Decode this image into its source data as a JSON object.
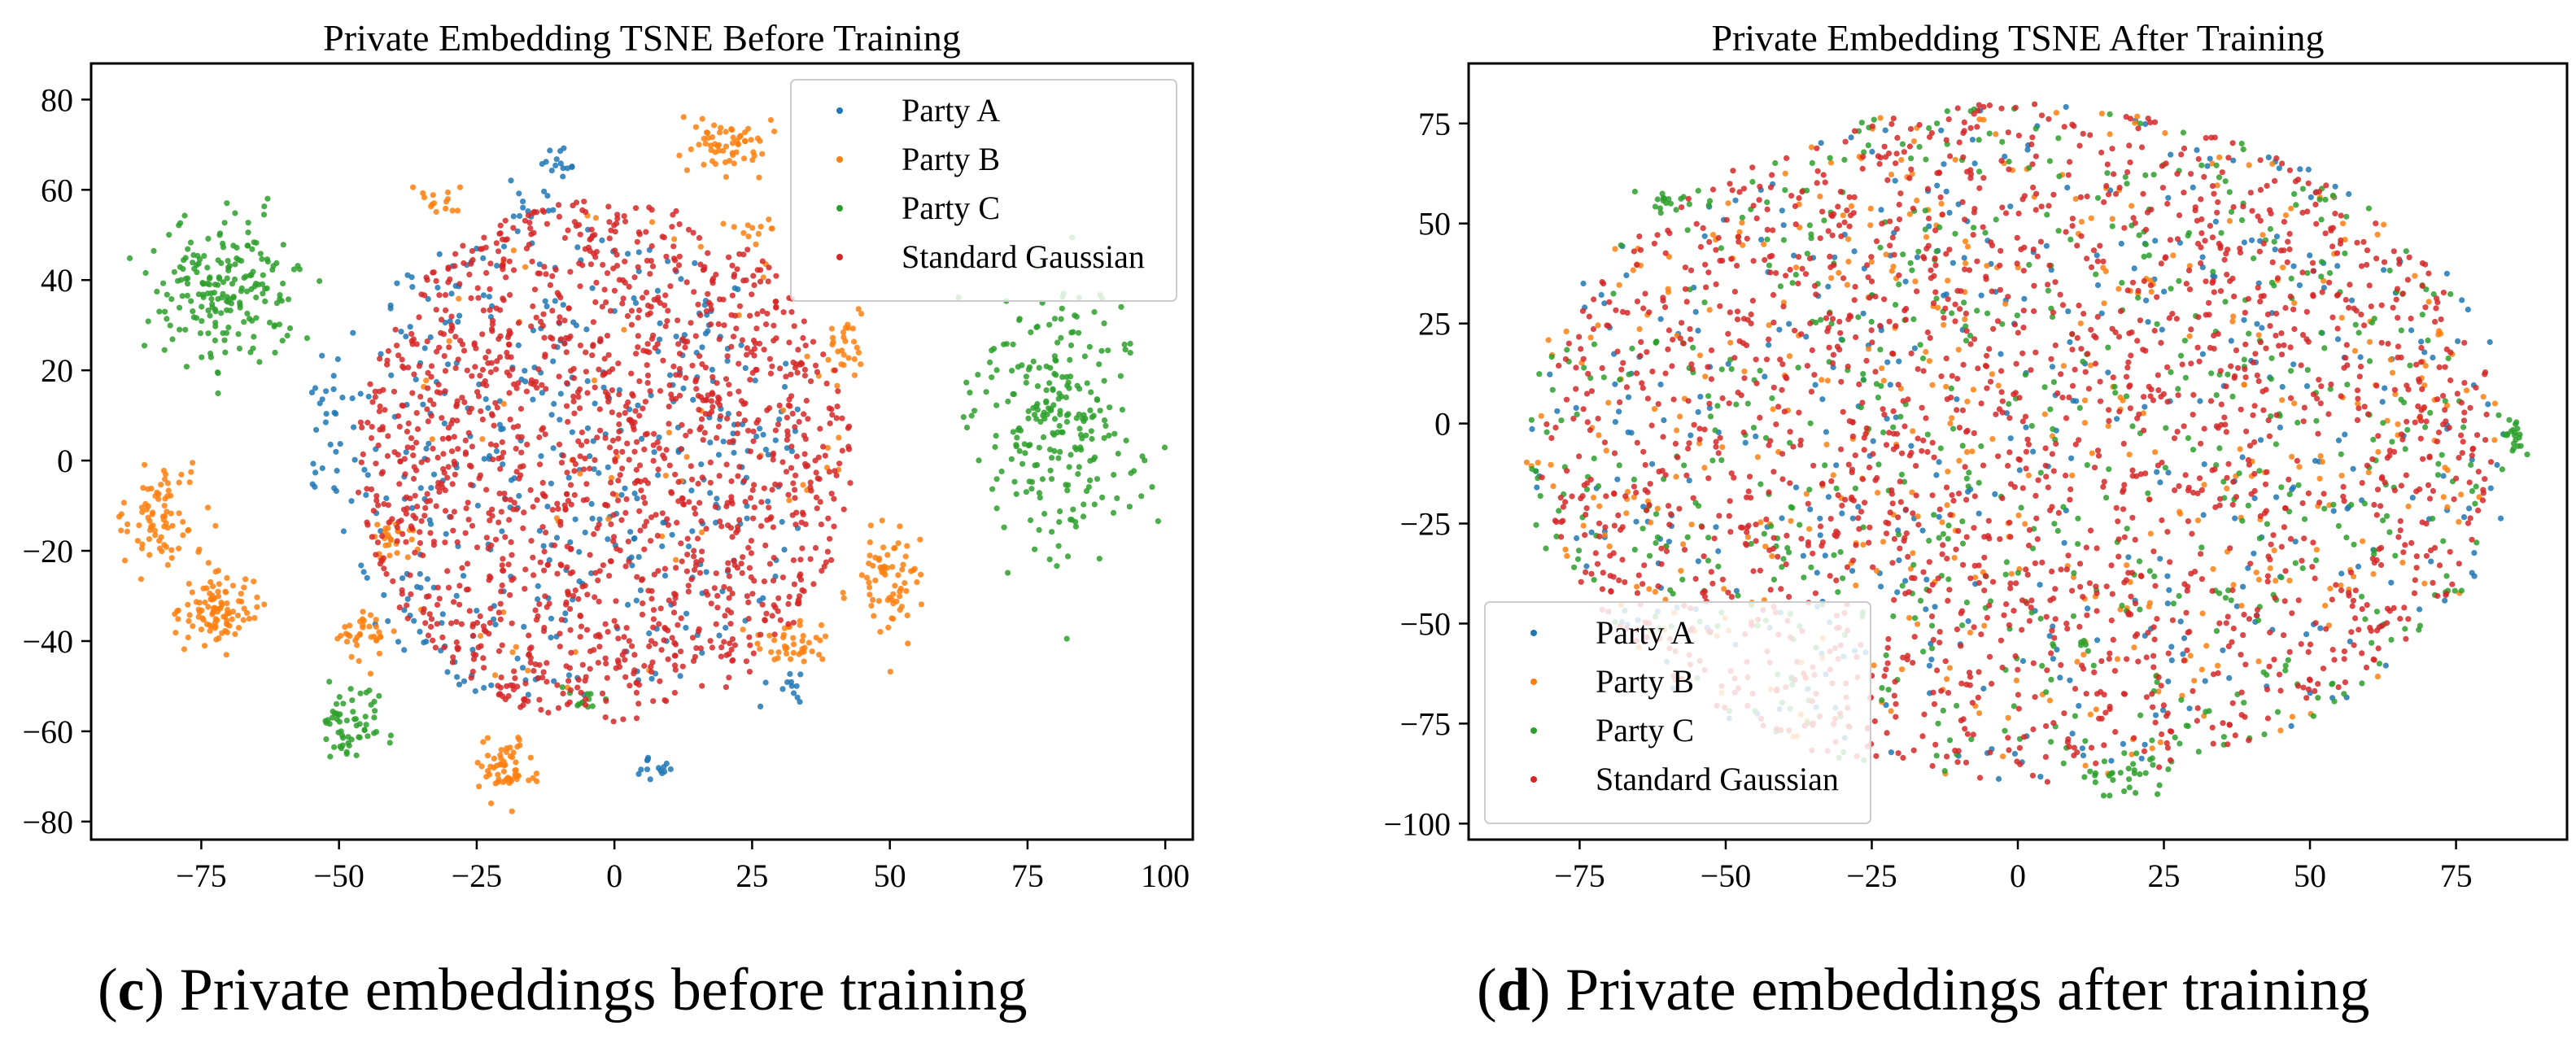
{
  "chart_data": [
    {
      "type": "scatter",
      "title": "Private Embedding TSNE Before Training",
      "xlabel": "",
      "ylabel": "",
      "xlim": [
        -95,
        105
      ],
      "ylim": [
        -84,
        88
      ],
      "xticks": [
        -75,
        -50,
        -25,
        0,
        25,
        50,
        75,
        100
      ],
      "xtick_labels": [
        "−75",
        "−50",
        "−25",
        "0",
        "25",
        "50",
        "75",
        "100"
      ],
      "yticks": [
        -80,
        -60,
        -40,
        -20,
        0,
        20,
        40,
        60,
        80
      ],
      "ytick_labels": [
        "−80",
        "−60",
        "−40",
        "−20",
        "0",
        "20",
        "40",
        "60",
        "80"
      ],
      "legend_position": "top-right",
      "legend": [
        "Party A",
        "Party B",
        "Party C",
        "Standard Gaussian"
      ],
      "series": [
        {
          "name": "Party A",
          "color": "#1f77b4",
          "clusters": [
            {
              "cx": -10,
              "cy": 0,
              "rx": 45,
              "ry": 55,
              "n": 420,
              "shape": "disk"
            },
            {
              "cx": -10,
              "cy": 65,
              "rx": 4,
              "ry": 3,
              "n": 14
            },
            {
              "cx": 8,
              "cy": -68,
              "rx": 6,
              "ry": 3,
              "n": 14
            },
            {
              "cx": 30,
              "cy": -50,
              "rx": 5,
              "ry": 4,
              "n": 12
            },
            {
              "cx": -15,
              "cy": 55,
              "rx": 5,
              "ry": 6,
              "n": 10
            },
            {
              "cx": -52,
              "cy": 5,
              "rx": 3,
              "ry": 15,
              "n": 16
            }
          ]
        },
        {
          "name": "Party B",
          "color": "#ff7f0e",
          "clusters": [
            {
              "cx": -82,
              "cy": -12,
              "rx": 8,
              "ry": 10,
              "n": 80
            },
            {
              "cx": -72,
              "cy": -33,
              "rx": 6,
              "ry": 7,
              "n": 100
            },
            {
              "cx": 20,
              "cy": 70,
              "rx": 7,
              "ry": 6,
              "n": 60
            },
            {
              "cx": -20,
              "cy": -68,
              "rx": 5,
              "ry": 6,
              "n": 60
            },
            {
              "cx": 50,
              "cy": -27,
              "rx": 6,
              "ry": 12,
              "n": 70
            },
            {
              "cx": 33,
              "cy": -40,
              "rx": 6,
              "ry": 5,
              "n": 40
            },
            {
              "cx": -45,
              "cy": -38,
              "rx": 5,
              "ry": 5,
              "n": 35
            },
            {
              "cx": -40,
              "cy": -17,
              "rx": 4,
              "ry": 5,
              "n": 25
            },
            {
              "cx": 42,
              "cy": 25,
              "rx": 4,
              "ry": 8,
              "n": 30
            },
            {
              "cx": -30,
              "cy": 58,
              "rx": 4,
              "ry": 3,
              "n": 15
            },
            {
              "cx": 25,
              "cy": 52,
              "rx": 4,
              "ry": 3,
              "n": 12
            },
            {
              "cx": 0,
              "cy": 0,
              "rx": 45,
              "ry": 55,
              "n": 60,
              "shape": "disk"
            }
          ]
        },
        {
          "name": "Party C",
          "color": "#2ca02c",
          "clusters": [
            {
              "cx": -70,
              "cy": 38,
              "rx": 12,
              "ry": 14,
              "n": 200
            },
            {
              "cx": 80,
              "cy": 10,
              "rx": 14,
              "ry": 28,
              "n": 250
            },
            {
              "cx": -47,
              "cy": -58,
              "rx": 6,
              "ry": 7,
              "n": 60
            },
            {
              "cx": -5,
              "cy": -53,
              "rx": 3,
              "ry": 3,
              "n": 12
            }
          ]
        },
        {
          "name": "Standard Gaussian",
          "color": "#d62728",
          "clusters": [
            {
              "cx": -2,
              "cy": 0,
              "rx": 45,
              "ry": 58,
              "n": 1500,
              "shape": "disk"
            }
          ]
        }
      ]
    },
    {
      "type": "scatter",
      "title": "Private Embedding TSNE After Training",
      "xlabel": "",
      "ylabel": "",
      "xlim": [
        -94,
        94
      ],
      "ylim": [
        -104,
        90
      ],
      "xticks": [
        -75,
        -50,
        -25,
        0,
        25,
        50,
        75
      ],
      "xtick_labels": [
        "−75",
        "−50",
        "−25",
        "0",
        "25",
        "50",
        "75"
      ],
      "yticks": [
        -100,
        -75,
        -50,
        -25,
        0,
        25,
        50,
        75
      ],
      "ytick_labels": [
        "−100",
        "−75",
        "−50",
        "−25",
        "0",
        "25",
        "50",
        "75"
      ],
      "legend_position": "lower-left",
      "legend": [
        "Party A",
        "Party B",
        "Party C",
        "Standard Gaussian"
      ],
      "series": [
        {
          "name": "Party A",
          "color": "#1f77b4",
          "clusters": [
            {
              "cx": 0,
              "cy": -5,
              "rx": 85,
              "ry": 85,
              "n": 450,
              "shape": "disk"
            }
          ]
        },
        {
          "name": "Party B",
          "color": "#ff7f0e",
          "clusters": [
            {
              "cx": 0,
              "cy": -5,
              "rx": 85,
              "ry": 85,
              "n": 450,
              "shape": "disk"
            }
          ]
        },
        {
          "name": "Party C",
          "color": "#2ca02c",
          "clusters": [
            {
              "cx": 0,
              "cy": -5,
              "rx": 85,
              "ry": 85,
              "n": 650,
              "shape": "disk"
            },
            {
              "cx": 18,
              "cy": -88,
              "rx": 6,
              "ry": 5,
              "n": 30
            },
            {
              "cx": 85,
              "cy": -3,
              "rx": 2,
              "ry": 5,
              "n": 18
            },
            {
              "cx": -60,
              "cy": 55,
              "rx": 5,
              "ry": 3,
              "n": 18
            }
          ]
        },
        {
          "name": "Standard Gaussian",
          "color": "#d62728",
          "clusters": [
            {
              "cx": 0,
              "cy": -5,
              "rx": 82,
              "ry": 85,
              "n": 1800,
              "shape": "disk"
            }
          ]
        }
      ]
    }
  ],
  "captions": {
    "c_letter": "c",
    "c_text": " Private embeddings before training",
    "d_letter": "d",
    "d_text": " Private embeddings after training"
  }
}
